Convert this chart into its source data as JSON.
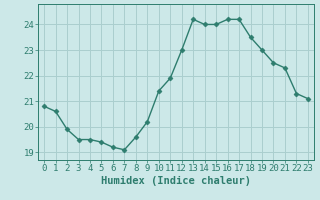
{
  "x": [
    0,
    1,
    2,
    3,
    4,
    5,
    6,
    7,
    8,
    9,
    10,
    11,
    12,
    13,
    14,
    15,
    16,
    17,
    18,
    19,
    20,
    21,
    22,
    23
  ],
  "y": [
    20.8,
    20.6,
    19.9,
    19.5,
    19.5,
    19.4,
    19.2,
    19.1,
    19.6,
    20.2,
    21.4,
    21.9,
    23.0,
    24.2,
    24.0,
    24.0,
    24.2,
    24.2,
    23.5,
    23.0,
    22.5,
    22.3,
    21.3,
    21.1
  ],
  "line_color": "#2e7d6e",
  "bg_color": "#cce8e8",
  "grid_color": "#aacece",
  "xlabel": "Humidex (Indice chaleur)",
  "xlim": [
    -0.5,
    23.5
  ],
  "ylim": [
    18.7,
    24.8
  ],
  "yticks": [
    19,
    20,
    21,
    22,
    23,
    24
  ],
  "xticks": [
    0,
    1,
    2,
    3,
    4,
    5,
    6,
    7,
    8,
    9,
    10,
    11,
    12,
    13,
    14,
    15,
    16,
    17,
    18,
    19,
    20,
    21,
    22,
    23
  ],
  "markersize": 2.5,
  "linewidth": 1.0,
  "xlabel_fontsize": 7.5,
  "tick_fontsize": 6.5
}
